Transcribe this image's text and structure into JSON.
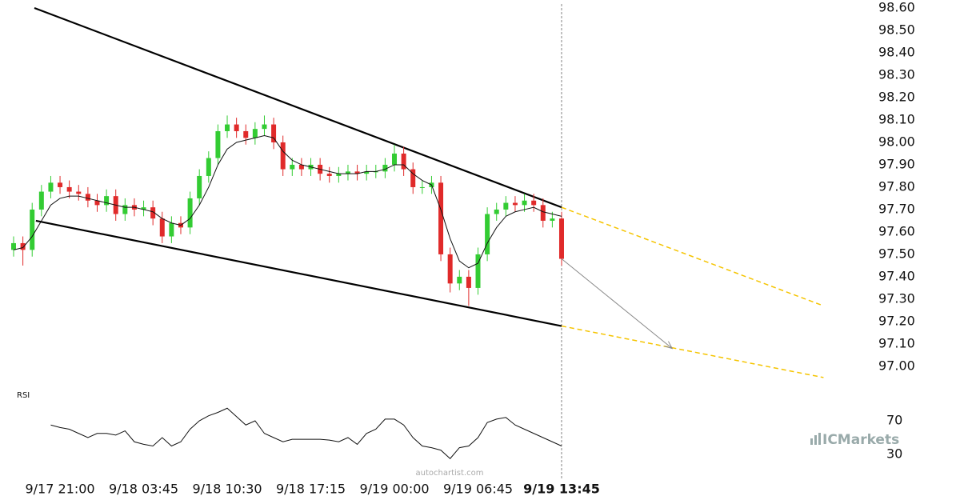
{
  "chart_data": {
    "type": "candlestick",
    "categories": [
      null,
      null,
      null,
      null,
      null,
      "9/17 21:00",
      null,
      null,
      null,
      null,
      null,
      null,
      null,
      null,
      "9/18 03:45",
      null,
      null,
      null,
      null,
      null,
      null,
      null,
      null,
      "9/18 10:30",
      null,
      null,
      null,
      null,
      null,
      null,
      null,
      null,
      "9/18 17:15",
      null,
      null,
      null,
      null,
      null,
      null,
      null,
      null,
      "9/19 00:00",
      null,
      null,
      null,
      null,
      null,
      null,
      null,
      null,
      "9/19 06:45",
      null,
      null,
      null,
      null,
      null,
      null,
      null,
      null,
      "9/19 13:45"
    ],
    "open": [
      97.52,
      97.55,
      97.52,
      97.7,
      97.78,
      97.82,
      97.8,
      97.78,
      97.77,
      97.74,
      97.72,
      97.76,
      97.68,
      97.72,
      97.7,
      97.71,
      97.66,
      97.58,
      97.64,
      97.62,
      97.75,
      97.85,
      97.93,
      98.05,
      98.08,
      98.05,
      98.02,
      98.06,
      98.08,
      98.0,
      97.88,
      97.9,
      97.88,
      97.9,
      97.86,
      97.85,
      97.86,
      97.87,
      97.86,
      97.87,
      97.87,
      97.9,
      97.95,
      97.88,
      97.8,
      97.8,
      97.82,
      97.5,
      97.37,
      97.4,
      97.35,
      97.5,
      97.68,
      97.7,
      97.73,
      97.72,
      97.74,
      97.72,
      97.65,
      97.66
    ],
    "high": [
      97.58,
      97.58,
      97.73,
      97.81,
      97.85,
      97.85,
      97.83,
      97.81,
      97.8,
      97.77,
      97.79,
      97.79,
      97.75,
      97.75,
      97.74,
      97.74,
      97.69,
      97.67,
      97.67,
      97.78,
      97.88,
      97.96,
      98.08,
      98.12,
      98.11,
      98.08,
      98.09,
      98.12,
      98.11,
      98.03,
      97.93,
      97.93,
      97.93,
      97.93,
      97.89,
      97.89,
      97.9,
      97.9,
      97.9,
      97.9,
      97.93,
      97.99,
      97.98,
      97.91,
      97.83,
      97.85,
      97.85,
      97.53,
      97.43,
      97.43,
      97.53,
      97.71,
      97.73,
      97.76,
      97.76,
      97.77,
      97.77,
      97.75,
      97.69,
      97.69
    ],
    "low": [
      97.49,
      97.45,
      97.49,
      97.67,
      97.75,
      97.77,
      97.75,
      97.74,
      97.71,
      97.69,
      97.69,
      97.65,
      97.65,
      97.67,
      97.67,
      97.63,
      97.55,
      97.55,
      97.59,
      97.59,
      97.72,
      97.82,
      97.9,
      98.02,
      98.02,
      97.99,
      97.99,
      98.03,
      97.97,
      97.85,
      97.85,
      97.85,
      97.85,
      97.83,
      97.82,
      97.82,
      97.83,
      97.83,
      97.83,
      97.84,
      97.84,
      97.87,
      97.85,
      97.77,
      97.77,
      97.77,
      97.47,
      97.33,
      97.34,
      97.27,
      97.32,
      97.47,
      97.65,
      97.67,
      97.69,
      97.69,
      97.69,
      97.62,
      97.62,
      97.45
    ],
    "close": [
      97.55,
      97.52,
      97.7,
      97.78,
      97.82,
      97.8,
      97.78,
      97.77,
      97.74,
      97.72,
      97.76,
      97.68,
      97.72,
      97.7,
      97.71,
      97.66,
      97.58,
      97.64,
      97.62,
      97.75,
      97.85,
      97.93,
      98.05,
      98.08,
      98.05,
      98.02,
      98.06,
      98.08,
      98.0,
      97.88,
      97.9,
      97.88,
      97.9,
      97.86,
      97.85,
      97.86,
      97.87,
      97.86,
      97.87,
      97.87,
      97.9,
      97.95,
      97.88,
      97.8,
      97.8,
      97.82,
      97.5,
      97.37,
      97.4,
      97.35,
      97.5,
      97.68,
      97.7,
      97.73,
      97.72,
      97.74,
      97.72,
      97.65,
      97.66,
      97.48
    ],
    "up_color": "#33cc33",
    "down_color": "#e02a2a",
    "moving_average": {
      "color": "#111111",
      "values": [
        97.52,
        97.53,
        97.58,
        97.65,
        97.72,
        97.75,
        97.76,
        97.76,
        97.75,
        97.74,
        97.73,
        97.72,
        97.71,
        97.71,
        97.7,
        97.69,
        97.66,
        97.64,
        97.63,
        97.66,
        97.72,
        97.8,
        97.9,
        97.97,
        98.0,
        98.01,
        98.02,
        98.03,
        98.02,
        97.96,
        97.92,
        97.9,
        97.89,
        97.88,
        97.87,
        97.86,
        97.86,
        97.86,
        97.87,
        97.87,
        97.88,
        97.9,
        97.9,
        97.86,
        97.83,
        97.81,
        97.7,
        97.57,
        97.47,
        97.44,
        97.46,
        97.55,
        97.62,
        97.67,
        97.69,
        97.7,
        97.71,
        97.69,
        97.68,
        97.67
      ]
    },
    "ylim": [
      96.9,
      98.6
    ],
    "yticks": [
      {
        "value": 98.6,
        "label": "98.60"
      },
      {
        "value": 98.5,
        "label": "98.50"
      },
      {
        "value": 98.4,
        "label": "98.40"
      },
      {
        "value": 98.3,
        "label": "98.30"
      },
      {
        "value": 98.2,
        "label": "98.20"
      },
      {
        "value": 98.1,
        "label": "98.10"
      },
      {
        "value": 98.0,
        "label": "98.00"
      },
      {
        "value": 97.9,
        "label": "97.90"
      },
      {
        "value": 97.8,
        "label": "97.80"
      },
      {
        "value": 97.7,
        "label": "97.70"
      },
      {
        "value": 97.6,
        "label": "97.60"
      },
      {
        "value": 97.5,
        "label": "97.50"
      },
      {
        "value": 97.4,
        "label": "97.40"
      },
      {
        "value": 97.3,
        "label": "97.30"
      },
      {
        "value": 97.2,
        "label": "97.20"
      },
      {
        "value": 97.1,
        "label": "97.10"
      },
      {
        "value": 97.0,
        "label": "97.00"
      }
    ],
    "trendlines": [
      {
        "color": "#000000",
        "dashed": false,
        "x": [
          2.24,
          59
        ],
        "y": [
          98.6,
          97.71
        ]
      },
      {
        "color": "#000000",
        "dashed": false,
        "x": [
          2.4,
          59
        ],
        "y": [
          97.65,
          97.18
        ]
      },
      {
        "color": "#f5c400",
        "dashed": true,
        "x": [
          59,
          87.2
        ],
        "y": [
          97.71,
          97.27
        ]
      },
      {
        "color": "#f5c400",
        "dashed": true,
        "x": [
          59,
          87.2
        ],
        "y": [
          97.18,
          96.95
        ]
      }
    ],
    "forecast_arrow": {
      "color": "#888888",
      "x": [
        59,
        70.9
      ],
      "y": [
        97.48,
        97.08
      ]
    },
    "rsi": {
      "label": "RSI",
      "color": "#111111",
      "ylim": [
        10,
        100
      ],
      "yticks": [
        70,
        30
      ],
      "values": [
        null,
        null,
        null,
        null,
        65,
        62,
        60,
        55,
        50,
        55,
        55,
        53,
        58,
        45,
        42,
        40,
        50,
        40,
        45,
        60,
        70,
        76,
        80,
        85,
        75,
        65,
        70,
        55,
        50,
        45,
        48,
        48,
        48,
        48,
        47,
        45,
        50,
        42,
        55,
        60,
        72,
        72,
        65,
        50,
        40,
        38,
        35,
        25,
        38,
        40,
        50,
        68,
        72,
        74,
        65,
        60,
        55,
        50,
        45,
        40
      ]
    },
    "watermark": "autochartist.com",
    "brand": "ICMarkets"
  }
}
